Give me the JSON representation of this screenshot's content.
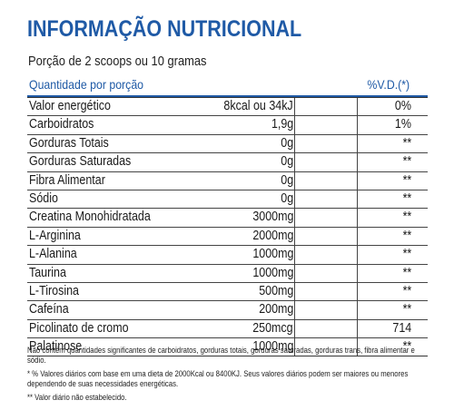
{
  "title": "INFORMAÇÃO NUTRICIONAL",
  "portion": "Porção de 2 scoops ou 10 gramas",
  "header": {
    "quantity_label": "Quantidade por porção",
    "vd_label": "%V.D.(*)"
  },
  "rows": [
    {
      "name": "Valor energético",
      "amount": "8kcal ou 34kJ",
      "vd": "0%"
    },
    {
      "name": "Carboidratos",
      "amount": "1,9g",
      "vd": "1%"
    },
    {
      "name": "Gorduras Totais",
      "amount": "0g",
      "vd": "**"
    },
    {
      "name": "Gorduras Saturadas",
      "amount": "0g",
      "vd": "**"
    },
    {
      "name": "Fibra Alimentar",
      "amount": "0g",
      "vd": "**"
    },
    {
      "name": "Sódio",
      "amount": "0g",
      "vd": "**"
    },
    {
      "name": "Creatina Monohidratada",
      "amount": "3000mg",
      "vd": "**"
    },
    {
      "name": "L-Arginina",
      "amount": "2000mg",
      "vd": "**"
    },
    {
      "name": "L-Alanina",
      "amount": "1000mg",
      "vd": "**"
    },
    {
      "name": "Taurina",
      "amount": "1000mg",
      "vd": "**"
    },
    {
      "name": "L-Tirosina",
      "amount": "500mg",
      "vd": "**"
    },
    {
      "name": "Cafeína",
      "amount": "200mg",
      "vd": "**"
    },
    {
      "name": "Picolinato de cromo",
      "amount": "250mcg",
      "vd": "714"
    },
    {
      "name": "Palatinose",
      "amount": "1000mg",
      "vd": "**"
    }
  ],
  "notes": {
    "line1": "Não contém quantidades significantes de carboidratos, gorduras totais, gorduras saturadas, gorduras trans, fibra alimentar e sódio.",
    "line2": "* % Valores diários com base em uma dieta de 2000Kcal ou 8400KJ. Seus valores diários podem ser maiores ou menores dependendo de suas necessidades energéticas.",
    "line3": "** Valor diário não estabelecido."
  },
  "colors": {
    "accent": "#1f5aa6",
    "text": "#1a1a1a",
    "background": "#ffffff"
  }
}
